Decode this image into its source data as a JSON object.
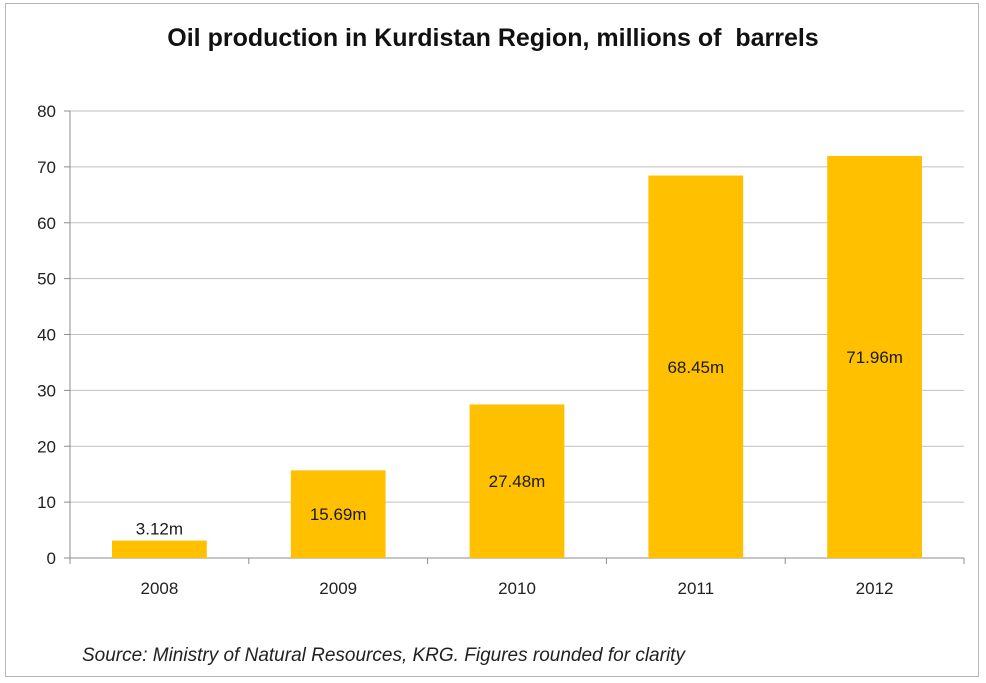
{
  "chart_data": {
    "type": "bar",
    "title": "Oil production in Kurdistan Region, millions of  barrels",
    "categories": [
      "2008",
      "2009",
      "2010",
      "2011",
      "2012"
    ],
    "values": [
      3.12,
      15.69,
      27.48,
      68.45,
      71.96
    ],
    "data_labels": [
      "3.12m",
      "15.69m",
      "27.48m",
      "68.45m",
      "71.96m"
    ],
    "ylim": [
      0,
      80
    ],
    "yticks": [
      0,
      10,
      20,
      30,
      40,
      50,
      60,
      70,
      80
    ],
    "xlabel": "",
    "ylabel": "",
    "grid": true,
    "legend": "none",
    "bar_color": "#ffc000",
    "grid_color": "#bfbfbf"
  },
  "source_note": "Source: Ministry of Natural Resources, KRG. Figures rounded for clarity"
}
